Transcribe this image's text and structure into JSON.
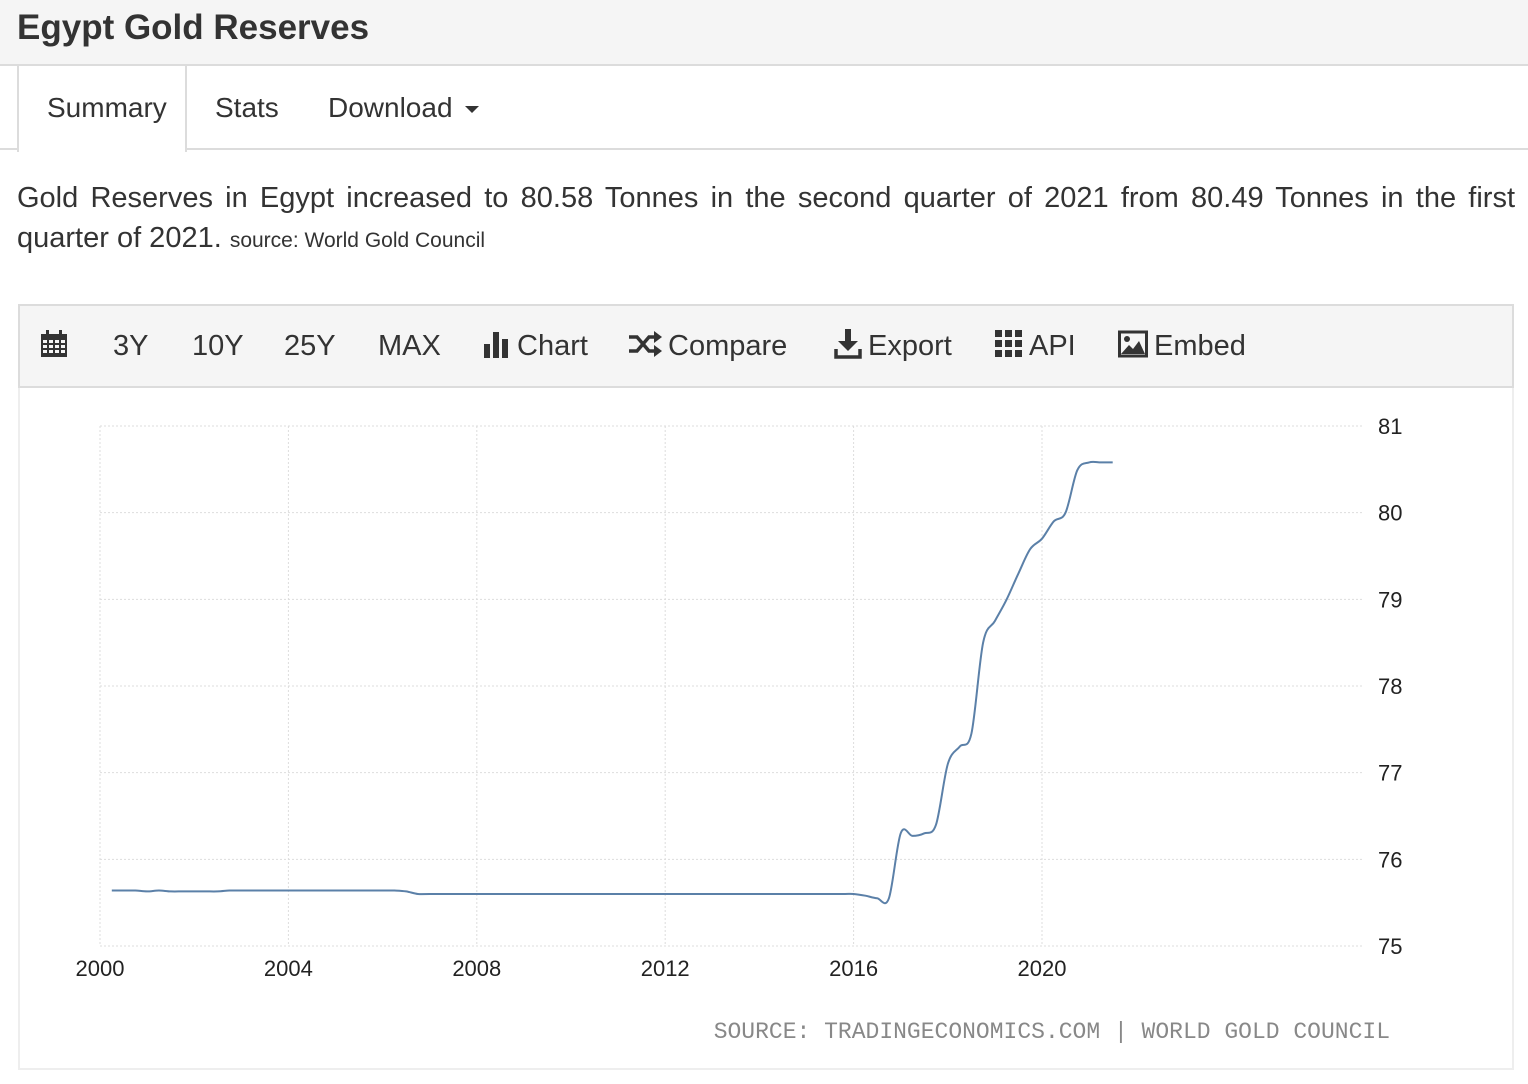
{
  "page": {
    "title": "Egypt Gold Reserves"
  },
  "tabs": [
    {
      "label": "Summary"
    },
    {
      "label": "Stats"
    },
    {
      "label": "Download"
    }
  ],
  "summary": {
    "text": "Gold Reserves in Egypt increased to 80.58 Tonnes in the second quarter of 2021 from 80.49 Tonnes in the first quarter of 2021.",
    "source": "source: World Gold Council"
  },
  "toolbar": {
    "range_3y": "3Y",
    "range_10y": "10Y",
    "range_25y": "25Y",
    "range_max": "MAX",
    "chart": "Chart",
    "compare": "Compare",
    "export": "Export",
    "api": "API",
    "embed": "Embed"
  },
  "chart_data": {
    "type": "line",
    "title": "",
    "xlabel": "",
    "ylabel": "",
    "x_ticks": [
      "2000",
      "2004",
      "2008",
      "2012",
      "2016",
      "2020"
    ],
    "y_ticks": [
      75,
      76,
      77,
      78,
      79,
      80,
      81
    ],
    "xlim": [
      2000,
      2022
    ],
    "ylim": [
      75,
      81
    ],
    "y_axis_position": "right",
    "grid": true,
    "line_color": "#5b80a8",
    "credit": "SOURCE: TRADINGECONOMICS.COM | WORLD GOLD COUNCIL",
    "series": [
      {
        "x": [
          2000.25,
          2000.5,
          2000.75,
          2001.0,
          2001.25,
          2001.5,
          2001.75,
          2002.0,
          2002.25,
          2002.5,
          2002.75,
          2003.0,
          2003.5,
          2004.0,
          2004.5,
          2005.0,
          2005.5,
          2006.0,
          2006.25,
          2006.5,
          2006.75,
          2007.0,
          2008.0,
          2009.0,
          2010.0,
          2011.0,
          2012.0,
          2013.0,
          2014.0,
          2015.0,
          2015.75,
          2016.0,
          2016.25,
          2016.5,
          2016.75,
          2017.0,
          2017.25,
          2017.5,
          2017.75,
          2018.0,
          2018.25,
          2018.5,
          2018.75,
          2019.0,
          2019.25,
          2019.5,
          2019.75,
          2020.0,
          2020.25,
          2020.5,
          2020.75,
          2021.0,
          2021.25,
          2021.5
        ],
        "y": [
          75.64,
          75.64,
          75.64,
          75.63,
          75.64,
          75.63,
          75.63,
          75.63,
          75.63,
          75.63,
          75.64,
          75.64,
          75.64,
          75.64,
          75.64,
          75.64,
          75.64,
          75.64,
          75.64,
          75.63,
          75.6,
          75.6,
          75.6,
          75.6,
          75.6,
          75.6,
          75.6,
          75.6,
          75.6,
          75.6,
          75.6,
          75.6,
          75.58,
          75.55,
          75.55,
          76.3,
          76.27,
          76.3,
          76.4,
          77.1,
          77.3,
          77.45,
          78.5,
          78.75,
          79.0,
          79.3,
          79.58,
          79.7,
          79.9,
          80.0,
          80.49,
          80.58,
          80.58,
          80.58
        ]
      }
    ]
  }
}
